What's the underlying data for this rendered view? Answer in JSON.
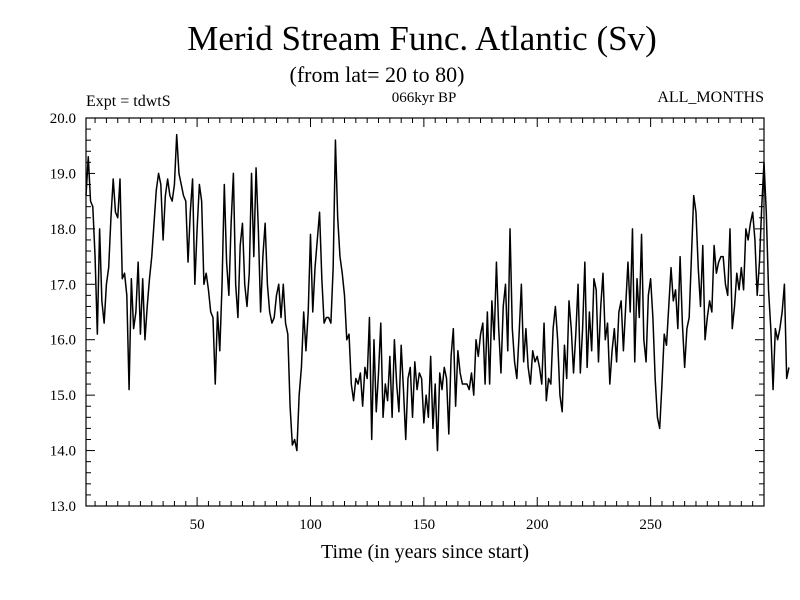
{
  "chart_data": {
    "type": "line",
    "title": "Merid Stream Func. Atlantic (Sv)",
    "subtitle": "(from lat= 20 to 80)",
    "experiment_label": "Expt = tdwtS",
    "period_label": "066kyr BP",
    "months_label": "ALL_MONTHS",
    "xlabel": "Time (in years since start)",
    "ylabel": "",
    "xlim": [
      1,
      300
    ],
    "ylim": [
      13.0,
      20.0
    ],
    "x_ticks": [
      50,
      100,
      150,
      200,
      250
    ],
    "x_tick_labels": [
      "50",
      "100",
      "150",
      "200",
      "250"
    ],
    "y_ticks": [
      13,
      14,
      15,
      16,
      17,
      18,
      19,
      20
    ],
    "y_tick_labels": [
      "13.0",
      "14.0",
      "15.0",
      "16.0",
      "17.0",
      "18.0",
      "19.0",
      "20.0"
    ],
    "series": [
      {
        "name": "Merid Stream Func.",
        "x_start": 1,
        "x_step": 1,
        "values": [
          18.6,
          19.3,
          18.5,
          18.4,
          17.5,
          16.1,
          18.0,
          16.7,
          16.3,
          17.0,
          17.3,
          18.2,
          18.9,
          18.3,
          18.2,
          18.9,
          17.1,
          17.2,
          16.8,
          15.1,
          17.1,
          16.2,
          16.5,
          17.4,
          16.1,
          17.1,
          16.0,
          16.6,
          17.1,
          17.5,
          18.1,
          18.7,
          19.0,
          18.8,
          17.8,
          18.6,
          18.9,
          18.6,
          18.5,
          18.8,
          19.7,
          19.0,
          18.8,
          18.6,
          18.5,
          17.4,
          18.3,
          18.9,
          17.0,
          18.0,
          18.8,
          18.5,
          17.0,
          17.2,
          16.9,
          16.5,
          16.4,
          15.2,
          16.5,
          15.8,
          17.0,
          18.8,
          17.4,
          16.8,
          18.1,
          19.0,
          17.0,
          16.4,
          17.7,
          18.1,
          17.0,
          16.6,
          17.2,
          19.0,
          17.5,
          19.1,
          18.0,
          16.5,
          17.5,
          18.1,
          17.0,
          16.5,
          16.3,
          16.4,
          16.8,
          17.0,
          16.4,
          17.0,
          16.3,
          16.1,
          14.8,
          14.1,
          14.2,
          14.0,
          15.0,
          15.5,
          16.5,
          15.8,
          16.5,
          17.9,
          16.5,
          17.3,
          17.8,
          18.3,
          17.1,
          16.3,
          16.4,
          16.4,
          16.3,
          17.3,
          19.6,
          18.2,
          17.5,
          17.2,
          16.8,
          16.0,
          16.1,
          15.2,
          14.9,
          15.3,
          15.2,
          15.4,
          14.8,
          15.5,
          15.3,
          16.4,
          14.2,
          16.0,
          14.7,
          15.4,
          16.3,
          14.6,
          15.2,
          14.9,
          15.7,
          14.6,
          16.0,
          15.2,
          14.7,
          15.9,
          15.1,
          14.2,
          15.3,
          15.5,
          14.6,
          15.6,
          15.1,
          15.4,
          15.3,
          14.5,
          15.0,
          14.6,
          15.7,
          14.4,
          15.2,
          14.0,
          15.4,
          15.1,
          15.5,
          15.3,
          14.3,
          15.7,
          16.2,
          14.8,
          15.8,
          15.4,
          15.2,
          15.2,
          15.2,
          15.1,
          15.4,
          15.0,
          16.0,
          15.7,
          16.1,
          16.3,
          15.2,
          16.5,
          15.2,
          16.7,
          16.0,
          17.4,
          16.2,
          15.4,
          16.6,
          17.0,
          15.8,
          18.0,
          16.2,
          15.6,
          15.3,
          16.1,
          17.0,
          15.6,
          16.2,
          15.5,
          15.2,
          15.8,
          15.6,
          15.7,
          15.5,
          15.2,
          16.3,
          14.9,
          15.3,
          15.2,
          16.2,
          16.6,
          16.0,
          15.0,
          14.7,
          15.9,
          15.3,
          16.7,
          16.2,
          15.4,
          16.1,
          17.0,
          15.4,
          16.2,
          17.4,
          15.5,
          16.5,
          15.8,
          17.1,
          16.9,
          15.6,
          16.6,
          17.2,
          16.0,
          16.3,
          15.2,
          15.8,
          16.2,
          15.6,
          16.5,
          16.7,
          15.8,
          16.6,
          17.4,
          16.5,
          18.0,
          15.6,
          17.1,
          16.4,
          17.9,
          16.0,
          15.6,
          16.8,
          17.1,
          16.4,
          15.3,
          14.6,
          14.4,
          15.2,
          16.1,
          15.9,
          16.6,
          17.3,
          16.7,
          16.9,
          16.2,
          17.5,
          16.3,
          15.5,
          16.2,
          16.4,
          17.5,
          18.6,
          18.3,
          17.3,
          16.6,
          17.7,
          16.0,
          16.4,
          16.7,
          16.5,
          17.7,
          17.2,
          17.4,
          17.5,
          17.5,
          17.0,
          16.8,
          18.0,
          16.2,
          16.6,
          17.2,
          16.9,
          17.3,
          16.9,
          18.0,
          17.8,
          18.1,
          18.3,
          17.8,
          16.8,
          17.4,
          18.4,
          19.2,
          18.3,
          16.9,
          16.2,
          15.1,
          16.2,
          16.0,
          16.2,
          16.5,
          17.0,
          15.3,
          15.5
        ]
      }
    ]
  }
}
